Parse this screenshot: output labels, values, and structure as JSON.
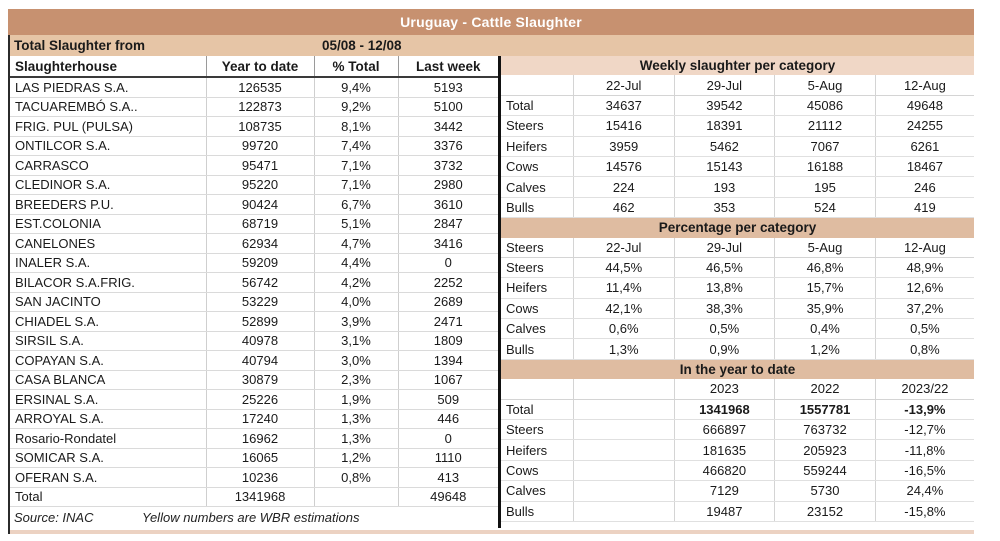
{
  "title": "Uruguay - Cattle Slaughter",
  "period": {
    "label": "Total Slaughter from",
    "value": "05/08 - 12/08"
  },
  "accent_colors": {
    "title_band": "#c79170",
    "sub_band": "#e6c5a6",
    "weekly_band": "#f0d7c6",
    "section_band": "#dfbca1"
  },
  "left_table": {
    "headers": [
      "Slaughterhouse",
      "Year to date",
      "% Total",
      "Last week"
    ],
    "rows": [
      [
        "LAS PIEDRAS S.A.",
        "126535",
        "9,4%",
        "5193"
      ],
      [
        "TACUAREMBÓ S.A..",
        "122873",
        "9,2%",
        "5100"
      ],
      [
        "FRIG. PUL (PULSA)",
        "108735",
        "8,1%",
        "3442"
      ],
      [
        "ONTILCOR S.A.",
        "99720",
        "7,4%",
        "3376"
      ],
      [
        "CARRASCO",
        "95471",
        "7,1%",
        "3732"
      ],
      [
        "CLEDINOR S.A.",
        "95220",
        "7,1%",
        "2980"
      ],
      [
        "BREEDERS P.U.",
        "90424",
        "6,7%",
        "3610"
      ],
      [
        "EST.COLONIA",
        "68719",
        "5,1%",
        "2847"
      ],
      [
        "CANELONES",
        "62934",
        "4,7%",
        "3416"
      ],
      [
        "INALER S.A.",
        "59209",
        "4,4%",
        "0"
      ],
      [
        "BILACOR S.A.FRIG.",
        "56742",
        "4,2%",
        "2252"
      ],
      [
        "SAN JACINTO",
        "53229",
        "4,0%",
        "2689"
      ],
      [
        "CHIADEL S.A.",
        "52899",
        "3,9%",
        "2471"
      ],
      [
        "SIRSIL S.A.",
        "40978",
        "3,1%",
        "1809"
      ],
      [
        "COPAYAN S.A.",
        "40794",
        "3,0%",
        "1394"
      ],
      [
        "CASA BLANCA",
        "30879",
        "2,3%",
        "1067"
      ],
      [
        "ERSINAL S.A.",
        "25226",
        "1,9%",
        "509"
      ],
      [
        "ARROYAL S.A.",
        "17240",
        "1,3%",
        "446"
      ],
      [
        "Rosario-Rondatel",
        "16962",
        "1,3%",
        "0"
      ],
      [
        "SOMICAR S.A.",
        "16065",
        "1,2%",
        "1110"
      ],
      [
        "OFERAN S.A.",
        "10236",
        "0,8%",
        "413"
      ]
    ],
    "total_row": [
      "Total",
      "1341968",
      "",
      "49648"
    ],
    "source": "Source: INAC",
    "note": "Yellow numbers are WBR estimations"
  },
  "weekly": {
    "title": "Weekly slaughter per category",
    "columns": [
      "22-Jul",
      "29-Jul",
      "5-Aug",
      "12-Aug"
    ],
    "rows": [
      [
        "Total",
        "34637",
        "39542",
        "45086",
        "49648"
      ],
      [
        "Steers",
        "15416",
        "18391",
        "21112",
        "24255"
      ],
      [
        "Heifers",
        "3959",
        "5462",
        "7067",
        "6261"
      ],
      [
        "Cows",
        "14576",
        "15143",
        "16188",
        "18467"
      ],
      [
        "Calves",
        "224",
        "193",
        "195",
        "246"
      ],
      [
        "Bulls",
        "462",
        "353",
        "524",
        "419"
      ]
    ]
  },
  "percentage": {
    "title": "Percentage per category",
    "corner_label": "Steers",
    "columns": [
      "22-Jul",
      "29-Jul",
      "5-Aug",
      "12-Aug"
    ],
    "rows": [
      [
        "Steers",
        "44,5%",
        "46,5%",
        "46,8%",
        "48,9%"
      ],
      [
        "Heifers",
        "11,4%",
        "13,8%",
        "15,7%",
        "12,6%"
      ],
      [
        "Cows",
        "42,1%",
        "38,3%",
        "35,9%",
        "37,2%"
      ],
      [
        "Calves",
        "0,6%",
        "0,5%",
        "0,4%",
        "0,5%"
      ],
      [
        "Bulls",
        "1,3%",
        "0,9%",
        "1,2%",
        "0,8%"
      ]
    ]
  },
  "ytd": {
    "title": "In the year to date",
    "columns": [
      "2023",
      "2022",
      "2023/22"
    ],
    "rows": [
      [
        "Total",
        "1341968",
        "1557781",
        "-13,9%"
      ],
      [
        "Steers",
        "666897",
        "763732",
        "-12,7%"
      ],
      [
        "Heifers",
        "181635",
        "205923",
        "-11,8%"
      ],
      [
        "Cows",
        "466820",
        "559244",
        "-16,5%"
      ],
      [
        "Calves",
        "7129",
        "5730",
        "24,4%"
      ],
      [
        "Bulls",
        "19487",
        "23152",
        "-15,8%"
      ]
    ]
  }
}
